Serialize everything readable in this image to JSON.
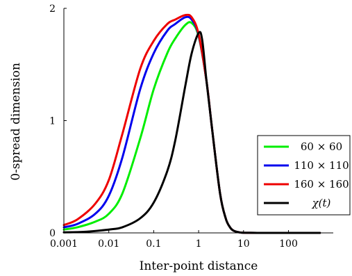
{
  "chart_data": {
    "type": "line",
    "title": "",
    "xlabel": "Inter-point distance",
    "ylabel": "0-spread dimension",
    "xscale": "log",
    "xlim": [
      0.001,
      1000
    ],
    "ylim": [
      0,
      2
    ],
    "xticks": [
      {
        "value": 0.001,
        "label": "0.001"
      },
      {
        "value": 0.01,
        "label": "0.01"
      },
      {
        "value": 0.1,
        "label": "0.1"
      },
      {
        "value": 1,
        "label": "1"
      },
      {
        "value": 10,
        "label": "10"
      },
      {
        "value": 100,
        "label": "100"
      }
    ],
    "yticks": [
      {
        "value": 0,
        "label": "0"
      },
      {
        "value": 1,
        "label": "1"
      },
      {
        "value": 2,
        "label": "2"
      }
    ],
    "grid": false,
    "legend_position": "right",
    "series": [
      {
        "name": "60 × 60",
        "color": "#00ee00",
        "x": [
          0.001,
          0.002,
          0.005,
          0.01,
          0.02,
          0.05,
          0.1,
          0.2,
          0.3,
          0.5,
          0.7,
          1.0,
          1.5,
          2.0,
          3.0,
          4.0,
          5.0,
          6.0,
          8.0,
          10,
          20,
          50,
          100,
          500
        ],
        "y": [
          0.03,
          0.05,
          0.1,
          0.17,
          0.35,
          0.84,
          1.28,
          1.6,
          1.73,
          1.85,
          1.87,
          1.75,
          1.35,
          0.92,
          0.35,
          0.13,
          0.05,
          0.02,
          0.005,
          0.002,
          0.0,
          0.0,
          0.0,
          0.0
        ]
      },
      {
        "name": "110 × 110",
        "color": "#0000ee",
        "x": [
          0.001,
          0.002,
          0.005,
          0.01,
          0.02,
          0.05,
          0.1,
          0.2,
          0.3,
          0.5,
          0.7,
          1.0,
          1.5,
          2.0,
          3.0,
          4.0,
          5.0,
          6.0,
          8.0,
          10,
          20,
          50,
          100,
          500
        ],
        "y": [
          0.05,
          0.08,
          0.17,
          0.33,
          0.67,
          1.28,
          1.6,
          1.8,
          1.86,
          1.92,
          1.9,
          1.76,
          1.35,
          0.92,
          0.35,
          0.13,
          0.05,
          0.02,
          0.005,
          0.002,
          0.0,
          0.0,
          0.0,
          0.0
        ]
      },
      {
        "name": "160 × 160",
        "color": "#ee0000",
        "x": [
          0.001,
          0.002,
          0.005,
          0.01,
          0.02,
          0.05,
          0.1,
          0.2,
          0.3,
          0.5,
          0.7,
          1.0,
          1.5,
          2.0,
          3.0,
          4.0,
          5.0,
          6.0,
          8.0,
          10,
          20,
          50,
          100,
          500
        ],
        "y": [
          0.07,
          0.12,
          0.26,
          0.47,
          0.88,
          1.46,
          1.71,
          1.86,
          1.9,
          1.94,
          1.92,
          1.77,
          1.35,
          0.92,
          0.35,
          0.13,
          0.05,
          0.02,
          0.005,
          0.002,
          0.0,
          0.0,
          0.0,
          0.0
        ]
      },
      {
        "name": "χ(t)",
        "color": "#000000",
        "x": [
          0.001,
          0.003,
          0.01,
          0.02,
          0.05,
          0.1,
          0.2,
          0.3,
          0.5,
          0.7,
          1.0,
          1.2,
          1.5,
          2.0,
          3.0,
          4.0,
          5.0,
          6.0,
          8.0,
          10,
          20,
          50,
          100,
          500
        ],
        "y": [
          0.005,
          0.01,
          0.03,
          0.05,
          0.13,
          0.27,
          0.55,
          0.82,
          1.3,
          1.6,
          1.78,
          1.72,
          1.35,
          0.92,
          0.35,
          0.13,
          0.05,
          0.02,
          0.005,
          0.002,
          0.0,
          0.0,
          0.0,
          0.0
        ]
      }
    ]
  }
}
